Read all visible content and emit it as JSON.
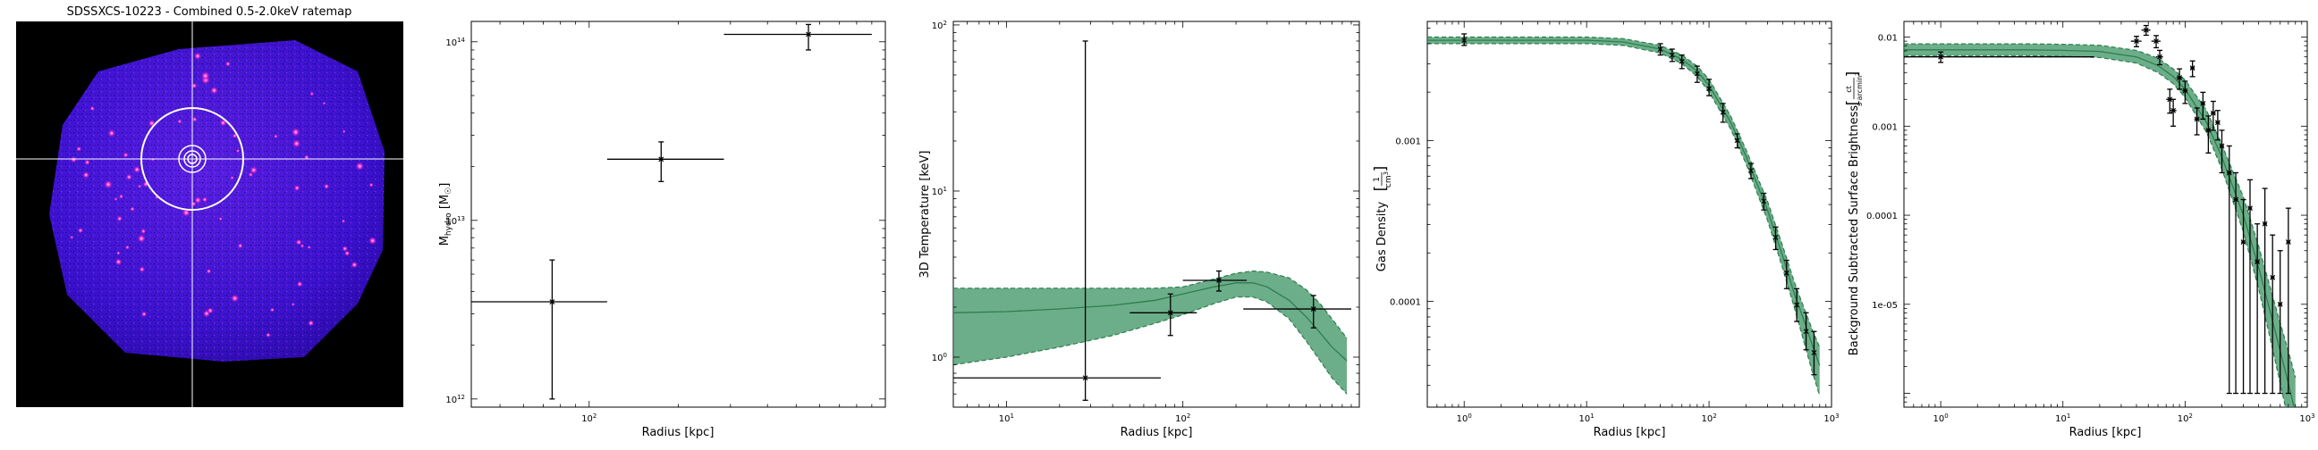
{
  "colors": {
    "band_fill": "#2e8b57",
    "band_edge": "#2e7d4f",
    "model_line": "#2e7d4f",
    "point": "#000000",
    "crosshair": "#ffffff",
    "ratemap_background": "#000000",
    "ratemap_field": "#3f12d6"
  },
  "chart_data": [
    {
      "type": "image",
      "title": "SDSSXCS-10223 - Combined 0.5-2.0keV ratemap",
      "overlays": [
        "crosshair",
        "concentric-circles"
      ]
    },
    {
      "type": "scatter",
      "xscale": "log",
      "yscale": "log",
      "xlim": [
        40,
        1000
      ],
      "ylim": [
        900000000000.0,
        130000000000000.0
      ],
      "xlabel": "Radius [kpc]",
      "ylabel": "M_hydro [M_☉]",
      "xticks": [
        {
          "v": 100,
          "b": "10",
          "e": "2"
        }
      ],
      "yticks": [
        {
          "v": 1000000000000.0,
          "b": "10",
          "e": "12"
        },
        {
          "v": 10000000000000.0,
          "b": "10",
          "e": "13"
        },
        {
          "v": 100000000000000.0,
          "b": "10",
          "e": "14"
        }
      ],
      "points": [
        {
          "x": 75,
          "y": 3500000000000.0,
          "xerr": [
            40,
            115
          ],
          "yerr": [
            1000000000000.0,
            6000000000000.0
          ]
        },
        {
          "x": 175,
          "y": 22000000000000.0,
          "xerr": [
            115,
            285
          ],
          "yerr": [
            16500000000000.0,
            27500000000000.0
          ]
        },
        {
          "x": 550,
          "y": 110000000000000.0,
          "xerr": [
            285,
            900
          ],
          "yerr": [
            90000000000000.0,
            125000000000000.0
          ]
        }
      ]
    },
    {
      "type": "line",
      "xscale": "log",
      "yscale": "log",
      "xlim": [
        5,
        1000
      ],
      "ylim": [
        0.5,
        105
      ],
      "xlabel": "Radius [kpc]",
      "ylabel": "3D Temperature [keV]",
      "xticks": [
        {
          "v": 10,
          "b": "10",
          "e": "1"
        },
        {
          "v": 100,
          "b": "10",
          "e": "2"
        }
      ],
      "yticks": [
        {
          "v": 1,
          "b": "10",
          "e": "0"
        },
        {
          "v": 10,
          "b": "10",
          "e": "1"
        },
        {
          "v": 100,
          "b": "10",
          "e": "2"
        }
      ],
      "model": {
        "x": [
          5,
          10,
          20,
          40,
          70,
          100,
          150,
          200,
          250,
          300,
          400,
          500,
          600,
          700,
          850
        ],
        "y": [
          1.85,
          1.88,
          1.95,
          2.05,
          2.2,
          2.4,
          2.65,
          2.8,
          2.8,
          2.65,
          2.2,
          1.75,
          1.4,
          1.15,
          0.95
        ],
        "lower": [
          0.9,
          1.0,
          1.15,
          1.35,
          1.6,
          1.8,
          2.1,
          2.3,
          2.3,
          2.15,
          1.7,
          1.25,
          0.95,
          0.75,
          0.6
        ],
        "upper": [
          2.6,
          2.6,
          2.6,
          2.6,
          2.6,
          2.65,
          2.95,
          3.2,
          3.3,
          3.25,
          3.0,
          2.55,
          2.1,
          1.7,
          1.3
        ]
      },
      "points": [
        {
          "x": 28,
          "y": 0.75,
          "xerr": [
            5,
            75
          ],
          "yerr": [
            0.55,
            80
          ]
        },
        {
          "x": 85,
          "y": 1.85,
          "xerr": [
            50,
            120
          ],
          "yerr": [
            1.35,
            2.4
          ]
        },
        {
          "x": 160,
          "y": 2.9,
          "xerr": [
            100,
            230
          ],
          "yerr": [
            2.5,
            3.3
          ]
        },
        {
          "x": 550,
          "y": 1.95,
          "xerr": [
            220,
            900
          ],
          "yerr": [
            1.5,
            2.35
          ]
        }
      ]
    },
    {
      "type": "line",
      "xscale": "log",
      "yscale": "log",
      "xlim": [
        0.5,
        1000
      ],
      "ylim": [
        2.2e-05,
        0.0055
      ],
      "xlabel": "Radius [kpc]",
      "ylabel": "Gas Density [1/cm³]",
      "xticks": [
        {
          "v": 1,
          "b": "10",
          "e": "0"
        },
        {
          "v": 10,
          "b": "10",
          "e": "1"
        },
        {
          "v": 100,
          "b": "10",
          "e": "2"
        },
        {
          "v": 1000,
          "b": "10",
          "e": "3"
        }
      ],
      "yticks": [
        {
          "v": 0.001,
          "t": "0.001"
        },
        {
          "v": 0.0001,
          "t": "0.0001"
        }
      ],
      "model": {
        "x": [
          0.5,
          1,
          5,
          10,
          20,
          40,
          60,
          80,
          100,
          150,
          200,
          300,
          400,
          500,
          600,
          700,
          800
        ],
        "y": [
          0.0042,
          0.0042,
          0.0042,
          0.0042,
          0.0041,
          0.0037,
          0.0032,
          0.0027,
          0.0022,
          0.0013,
          0.0008,
          0.00037,
          0.00019,
          0.00011,
          7.5e-05,
          5.3e-05,
          4e-05
        ],
        "lower": [
          0.004,
          0.004,
          0.004,
          0.004,
          0.0039,
          0.0035,
          0.003,
          0.0025,
          0.002,
          0.00118,
          0.00072,
          0.00032,
          0.00016,
          9e-05,
          5.5e-05,
          3.6e-05,
          2.6e-05
        ],
        "upper": [
          0.0044,
          0.0044,
          0.0044,
          0.0044,
          0.0043,
          0.0039,
          0.0034,
          0.0029,
          0.0024,
          0.00142,
          0.00088,
          0.00042,
          0.00022,
          0.00013,
          9e-05,
          6.6e-05,
          5.2e-05
        ]
      },
      "points": [
        {
          "x": 1,
          "y": 0.0042,
          "yerr": [
            0.0039,
            0.0046
          ]
        },
        {
          "x": 40,
          "y": 0.0037,
          "yerr": [
            0.0034,
            0.004
          ]
        },
        {
          "x": 50,
          "y": 0.0034,
          "yerr": [
            0.0031,
            0.0037
          ]
        },
        {
          "x": 60,
          "y": 0.0031,
          "yerr": [
            0.0028,
            0.0034
          ]
        },
        {
          "x": 80,
          "y": 0.0026,
          "yerr": [
            0.0023,
            0.0029
          ]
        },
        {
          "x": 100,
          "y": 0.0021,
          "yerr": [
            0.0019,
            0.0024
          ]
        },
        {
          "x": 130,
          "y": 0.0015,
          "yerr": [
            0.0013,
            0.0017
          ]
        },
        {
          "x": 170,
          "y": 0.001,
          "yerr": [
            0.0009,
            0.0011
          ]
        },
        {
          "x": 220,
          "y": 0.00065,
          "yerr": [
            0.00058,
            0.00072
          ]
        },
        {
          "x": 280,
          "y": 0.00042,
          "yerr": [
            0.00037,
            0.00047
          ]
        },
        {
          "x": 350,
          "y": 0.00025,
          "yerr": [
            0.00021,
            0.00029
          ]
        },
        {
          "x": 430,
          "y": 0.00015,
          "yerr": [
            0.00012,
            0.00018
          ]
        },
        {
          "x": 520,
          "y": 9.5e-05,
          "yerr": [
            7.5e-05,
            0.00012
          ]
        },
        {
          "x": 620,
          "y": 6.5e-05,
          "yerr": [
            5e-05,
            8.5e-05
          ]
        },
        {
          "x": 720,
          "y": 4.8e-05,
          "yerr": [
            3.5e-05,
            6.5e-05
          ]
        }
      ]
    },
    {
      "type": "line",
      "xscale": "log",
      "yscale": "log",
      "xlim": [
        0.5,
        1000
      ],
      "ylim": [
        7e-07,
        0.015
      ],
      "xlabel": "Radius [kpc]",
      "ylabel": "Background Subtracted Surface Brightness [ct/s/arcmin²]",
      "xticks": [
        {
          "v": 1,
          "b": "10",
          "e": "0"
        },
        {
          "v": 10,
          "b": "10",
          "e": "1"
        },
        {
          "v": 100,
          "b": "10",
          "e": "2"
        },
        {
          "v": 1000,
          "b": "10",
          "e": "3"
        }
      ],
      "yticks": [
        {
          "v": 0.01,
          "t": "0.01"
        },
        {
          "v": 0.001,
          "t": "0.001"
        },
        {
          "v": 0.0001,
          "t": "0.0001"
        },
        {
          "v": 1e-05,
          "t": "1e-05"
        }
      ],
      "model": {
        "x": [
          0.5,
          1,
          5,
          10,
          20,
          40,
          60,
          80,
          100,
          150,
          200,
          300,
          400,
          500,
          600,
          700,
          800
        ],
        "y": [
          0.0072,
          0.0072,
          0.0072,
          0.0071,
          0.0069,
          0.006,
          0.0048,
          0.0036,
          0.0026,
          0.0011,
          0.00045,
          0.0001,
          2.6e-05,
          8e-06,
          3e-06,
          1.3e-06,
          6e-07
        ],
        "lower": [
          0.0062,
          0.0062,
          0.0062,
          0.0061,
          0.0059,
          0.0051,
          0.004,
          0.003,
          0.0021,
          0.00085,
          0.00033,
          6.5e-05,
          1.5e-05,
          4e-06,
          1.3e-06,
          5e-07,
          2e-07
        ],
        "upper": [
          0.0084,
          0.0084,
          0.0084,
          0.0083,
          0.0081,
          0.0071,
          0.0058,
          0.0044,
          0.0033,
          0.0015,
          0.00062,
          0.00016,
          4.5e-05,
          1.5e-05,
          6.2e-06,
          3e-06,
          1.5e-06
        ]
      },
      "points": [
        {
          "x": 1,
          "y": 0.006,
          "xerr": [
            0.5,
            18
          ],
          "yerr": [
            0.0052,
            0.0068
          ]
        },
        {
          "x": 40,
          "y": 0.009,
          "xerr": [
            36,
            44
          ],
          "yerr": [
            0.0078,
            0.0102
          ]
        },
        {
          "x": 48,
          "y": 0.012,
          "xerr": [
            44,
            52
          ],
          "yerr": [
            0.0105,
            0.0135
          ]
        },
        {
          "x": 58,
          "y": 0.009,
          "xerr": [
            53,
            63
          ],
          "yerr": [
            0.0076,
            0.0104
          ]
        },
        {
          "x": 62,
          "y": 0.006,
          "xerr": [
            58,
            66
          ],
          "yerr": [
            0.0049,
            0.0071
          ]
        },
        {
          "x": 75,
          "y": 0.002,
          "xerr": [
            70,
            80
          ],
          "yerr": [
            0.0014,
            0.0026
          ]
        },
        {
          "x": 80,
          "y": 0.0015,
          "xerr": [
            75,
            85
          ],
          "yerr": [
            0.001,
            0.002
          ]
        },
        {
          "x": 90,
          "y": 0.0035,
          "xerr": [
            85,
            95
          ],
          "yerr": [
            0.0026,
            0.0044
          ]
        },
        {
          "x": 100,
          "y": 0.0025,
          "xerr": [
            95,
            105
          ],
          "yerr": [
            0.0018,
            0.0032
          ]
        },
        {
          "x": 115,
          "y": 0.0045,
          "xerr": [
            110,
            120
          ],
          "yerr": [
            0.0036,
            0.0054
          ]
        },
        {
          "x": 125,
          "y": 0.0012,
          "xerr": [
            119,
            131
          ],
          "yerr": [
            0.0008,
            0.0016
          ]
        },
        {
          "x": 140,
          "y": 0.0018,
          "xerr": [
            134,
            146
          ],
          "yerr": [
            0.0012,
            0.0024
          ]
        },
        {
          "x": 155,
          "y": 0.0009,
          "xerr": [
            148,
            162
          ],
          "yerr": [
            0.0005,
            0.0013
          ]
        },
        {
          "x": 170,
          "y": 0.0014,
          "xerr": [
            162,
            178
          ],
          "yerr": [
            0.0009,
            0.0019
          ]
        },
        {
          "x": 185,
          "y": 0.0011,
          "xerr": [
            177,
            193
          ],
          "yerr": [
            0.0007,
            0.0015
          ]
        },
        {
          "x": 200,
          "y": 0.0006,
          "xerr": [
            192,
            208
          ],
          "yerr": [
            0.0003,
            0.0009
          ]
        },
        {
          "x": 230,
          "y": 0.0003,
          "xerr": [
            220,
            240
          ],
          "yerr": [
            1e-06,
            0.0006
          ]
        },
        {
          "x": 260,
          "y": 0.00015,
          "xerr": [
            249,
            271
          ],
          "yerr": [
            1e-06,
            0.0003
          ]
        },
        {
          "x": 300,
          "y": 5e-05,
          "xerr": [
            287,
            313
          ],
          "yerr": [
            1e-06,
            0.00015
          ]
        },
        {
          "x": 340,
          "y": 0.00012,
          "xerr": [
            326,
            354
          ],
          "yerr": [
            1e-06,
            0.00025
          ]
        },
        {
          "x": 390,
          "y": 3e-05,
          "xerr": [
            374,
            406
          ],
          "yerr": [
            1e-06,
            8e-05
          ]
        },
        {
          "x": 450,
          "y": 8e-05,
          "xerr": [
            432,
            468
          ],
          "yerr": [
            1e-06,
            0.0002
          ]
        },
        {
          "x": 520,
          "y": 2e-05,
          "xerr": [
            500,
            540
          ],
          "yerr": [
            1e-06,
            6e-05
          ]
        },
        {
          "x": 600,
          "y": 1e-05,
          "xerr": [
            577,
            623
          ],
          "yerr": [
            1e-06,
            4e-05
          ]
        },
        {
          "x": 700,
          "y": 5e-05,
          "xerr": [
            673,
            727
          ],
          "yerr": [
            1e-06,
            0.00012
          ]
        }
      ]
    }
  ]
}
